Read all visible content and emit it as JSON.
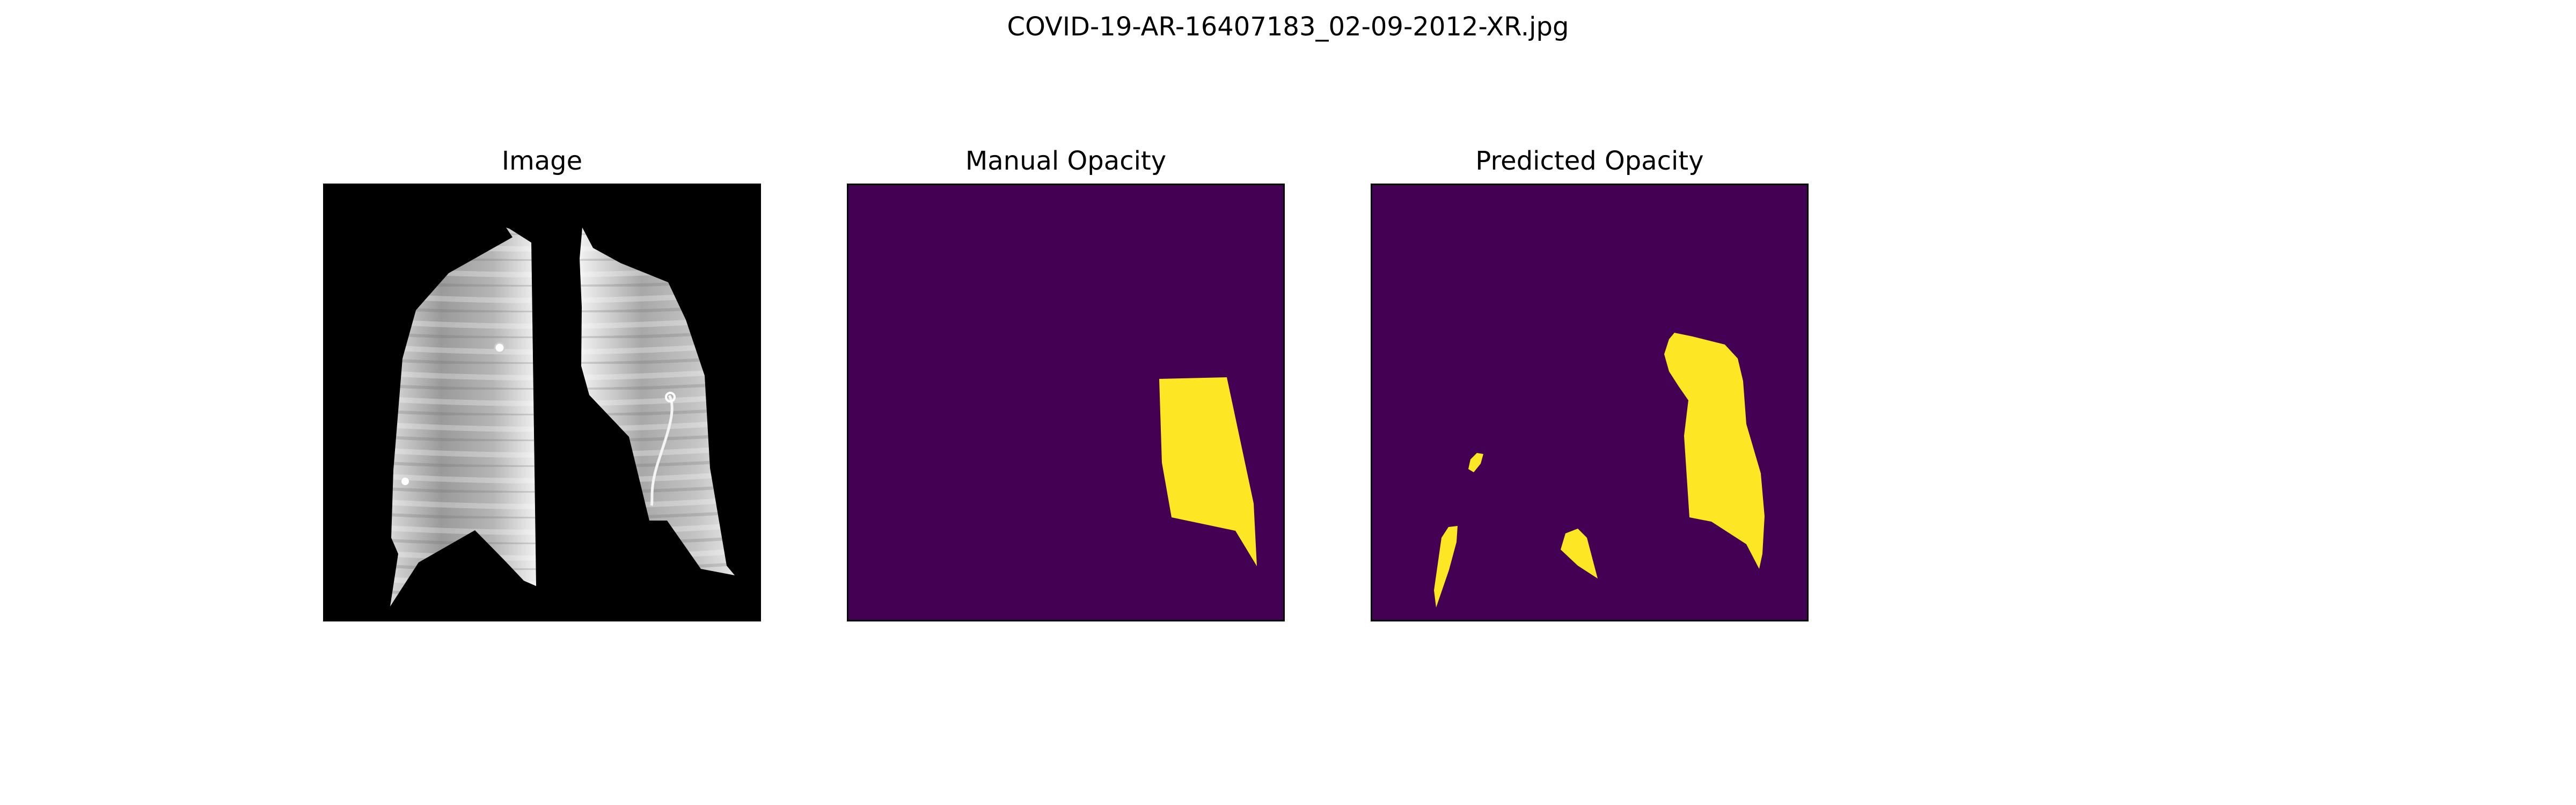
{
  "figure": {
    "title": "COVID-19-AR-16407183_02-09-2012-XR.jpg"
  },
  "panels": [
    {
      "id": "image",
      "title": "Image",
      "content": "grayscale chest x-ray with lung fields segmented on black background"
    },
    {
      "id": "manual",
      "title": "Manual Opacity",
      "mask_background": "#440154",
      "mask_foreground": "#fde725"
    },
    {
      "id": "predicted",
      "title": "Predicted Opacity",
      "mask_background": "#440154",
      "mask_foreground": "#fde725"
    }
  ],
  "colors": {
    "mask_background": "#440154",
    "mask_foreground": "#fde725",
    "image_background": "#000000",
    "frame": "#000000"
  }
}
